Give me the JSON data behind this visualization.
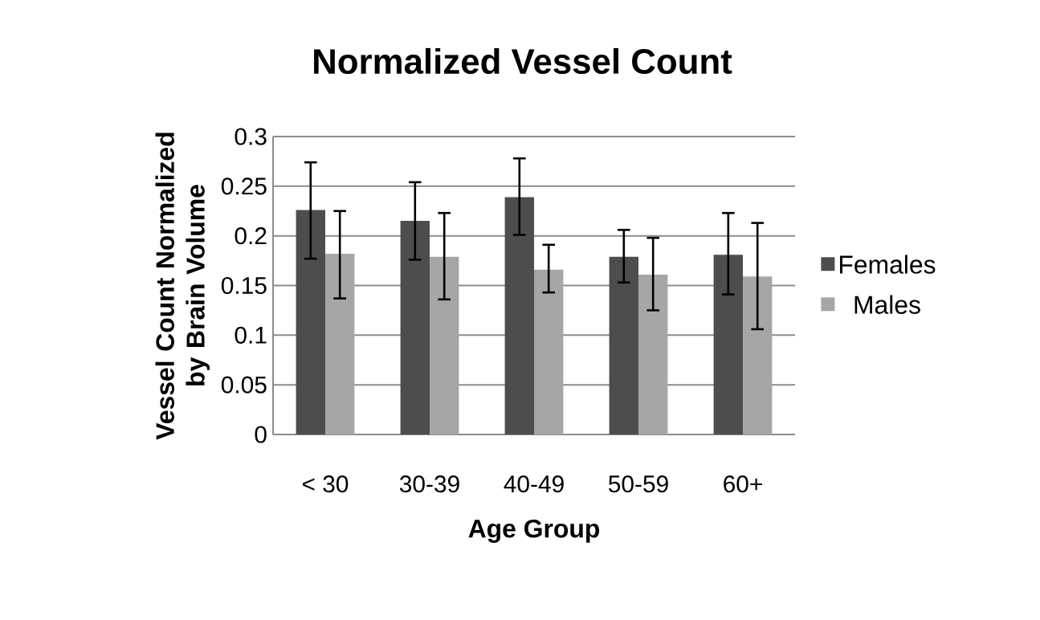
{
  "chart_data": {
    "type": "bar",
    "title": "Normalized Vessel Count",
    "xlabel": "Age Group",
    "ylabel": "Vessel Count Normalized by Brain Volume",
    "categories": [
      "< 30",
      "30-39",
      "40-49",
      "50-59",
      "60+"
    ],
    "series": [
      {
        "name": "Females",
        "color": "#4d4d4d",
        "values": [
          0.226,
          0.215,
          0.239,
          0.179,
          0.181
        ],
        "errors": [
          [
            0.177,
            0.274
          ],
          [
            0.176,
            0.254
          ],
          [
            0.201,
            0.278
          ],
          [
            0.153,
            0.206
          ],
          [
            0.141,
            0.223
          ]
        ]
      },
      {
        "name": "Males",
        "color": "#a6a6a6",
        "values": [
          0.182,
          0.179,
          0.166,
          0.161,
          0.159
        ],
        "errors": [
          [
            0.137,
            0.225
          ],
          [
            0.136,
            0.223
          ],
          [
            0.143,
            0.191
          ],
          [
            0.125,
            0.198
          ],
          [
            0.106,
            0.213
          ]
        ]
      }
    ],
    "ylim": [
      0,
      0.3
    ],
    "yticks": [
      0,
      0.05,
      0.1,
      0.15,
      0.2,
      0.25,
      0.3
    ],
    "grid": "y",
    "legend": "right"
  }
}
